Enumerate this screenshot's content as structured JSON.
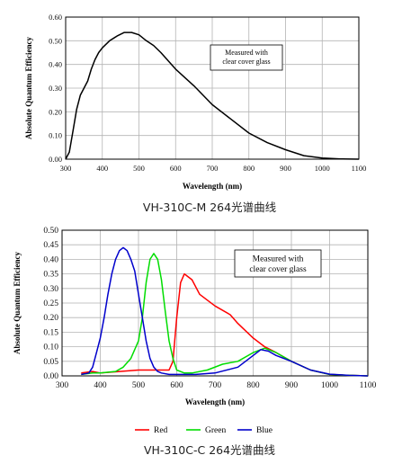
{
  "chart_data": [
    {
      "type": "line",
      "title": "",
      "xlabel": "Wavelength (nm)",
      "ylabel": "Absolute Quantum Efficiency",
      "xlim": [
        300,
        1100
      ],
      "ylim": [
        0,
        0.6
      ],
      "xticks": [
        "300",
        "400",
        "500",
        "600",
        "700",
        "800",
        "900",
        "1000",
        "1100"
      ],
      "yticks": [
        "0.00",
        "0.10",
        "0.20",
        "0.30",
        "0.40",
        "0.50",
        "0.60"
      ],
      "grid": true,
      "annotation": "Measured with\nclear cover glass",
      "caption": "VH-310C-M 264光谱曲线",
      "series": [
        {
          "color": "#000000",
          "x": [
            300,
            310,
            320,
            330,
            340,
            350,
            360,
            370,
            380,
            390,
            400,
            420,
            440,
            460,
            480,
            500,
            520,
            540,
            560,
            600,
            650,
            700,
            750,
            800,
            850,
            900,
            950,
            1000,
            1050,
            1100
          ],
          "y": [
            0.0,
            0.03,
            0.12,
            0.21,
            0.27,
            0.3,
            0.33,
            0.38,
            0.42,
            0.45,
            0.47,
            0.5,
            0.52,
            0.535,
            0.535,
            0.525,
            0.5,
            0.48,
            0.45,
            0.38,
            0.31,
            0.23,
            0.17,
            0.11,
            0.07,
            0.04,
            0.015,
            0.005,
            0.001,
            0.0
          ]
        }
      ]
    },
    {
      "type": "line",
      "title": "",
      "xlabel": "Wavelength (nm)",
      "ylabel": "Absolute Quantum Efficiency",
      "xlim": [
        300,
        1100
      ],
      "ylim": [
        0,
        0.5
      ],
      "xticks": [
        "300",
        "400",
        "500",
        "600",
        "700",
        "800",
        "900",
        "1000",
        "1100"
      ],
      "yticks": [
        "0.00",
        "0.05",
        "0.10",
        "0.15",
        "0.20",
        "0.25",
        "0.30",
        "0.35",
        "0.40",
        "0.45",
        "0.50"
      ],
      "grid": true,
      "annotation": "Measured with\nclear cover glass",
      "legend_position": "bottom",
      "caption": "VH-310C-C 264光谱曲线",
      "series": [
        {
          "name": "Red",
          "color": "#ff0000",
          "x": [
            350,
            380,
            400,
            450,
            500,
            540,
            560,
            580,
            590,
            600,
            610,
            620,
            640,
            660,
            700,
            740,
            760,
            800,
            830,
            860,
            900,
            950,
            1000,
            1050,
            1100
          ],
          "y": [
            0.01,
            0.015,
            0.01,
            0.015,
            0.02,
            0.02,
            0.02,
            0.02,
            0.05,
            0.2,
            0.32,
            0.35,
            0.33,
            0.28,
            0.24,
            0.21,
            0.18,
            0.13,
            0.1,
            0.08,
            0.05,
            0.02,
            0.005,
            0.002,
            0.0
          ]
        },
        {
          "name": "Green",
          "color": "#00dd00",
          "x": [
            350,
            380,
            400,
            440,
            460,
            480,
            500,
            510,
            520,
            530,
            540,
            550,
            560,
            570,
            580,
            590,
            600,
            620,
            640,
            680,
            720,
            760,
            800,
            830,
            860,
            900,
            950,
            1000,
            1050,
            1100
          ],
          "y": [
            0.005,
            0.01,
            0.01,
            0.015,
            0.03,
            0.06,
            0.12,
            0.2,
            0.32,
            0.4,
            0.42,
            0.4,
            0.33,
            0.22,
            0.12,
            0.06,
            0.02,
            0.01,
            0.01,
            0.02,
            0.04,
            0.05,
            0.08,
            0.095,
            0.08,
            0.05,
            0.02,
            0.005,
            0.002,
            0.0
          ]
        },
        {
          "name": "Blue",
          "color": "#0000cc",
          "x": [
            350,
            370,
            380,
            390,
            400,
            410,
            420,
            430,
            440,
            450,
            460,
            470,
            480,
            490,
            500,
            510,
            520,
            530,
            540,
            550,
            560,
            580,
            600,
            650,
            700,
            760,
            800,
            820,
            840,
            860,
            900,
            950,
            1000,
            1050,
            1100
          ],
          "y": [
            0.005,
            0.01,
            0.03,
            0.08,
            0.13,
            0.2,
            0.28,
            0.35,
            0.4,
            0.43,
            0.44,
            0.43,
            0.4,
            0.36,
            0.28,
            0.2,
            0.12,
            0.06,
            0.03,
            0.015,
            0.01,
            0.005,
            0.005,
            0.005,
            0.01,
            0.03,
            0.07,
            0.09,
            0.085,
            0.07,
            0.05,
            0.02,
            0.006,
            0.002,
            0.0
          ]
        }
      ]
    }
  ]
}
